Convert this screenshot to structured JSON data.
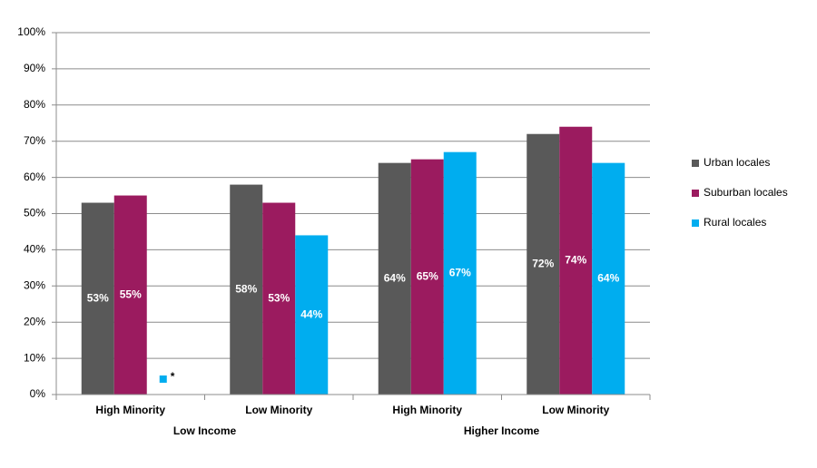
{
  "chart_data": {
    "type": "bar",
    "groups": [
      {
        "label": "Low Income",
        "span": [
          0,
          1
        ]
      },
      {
        "label": "Higher Income",
        "span": [
          2,
          3
        ]
      }
    ],
    "categories": [
      "High Minority",
      "Low Minority",
      "High Minority",
      "Low Minority"
    ],
    "series": [
      {
        "name": "Urban locales",
        "color": "#595959",
        "values": [
          53,
          58,
          64,
          72
        ],
        "value_labels": [
          "53%",
          "58%",
          "64%",
          "72%"
        ]
      },
      {
        "name": "Suburban locales",
        "color": "#9b1b5f",
        "values": [
          55,
          53,
          65,
          74
        ],
        "value_labels": [
          "55%",
          "53%",
          "65%",
          "74%"
        ]
      },
      {
        "name": "Rural locales",
        "color": "#00adef",
        "values": [
          null,
          44,
          67,
          64
        ],
        "value_labels": [
          null,
          "44%",
          "67%",
          "64%"
        ]
      }
    ],
    "annotation": "*",
    "ylim": [
      0,
      100
    ],
    "yticks": [
      {
        "value": 0,
        "label": "0%"
      },
      {
        "value": 10,
        "label": "10%"
      },
      {
        "value": 20,
        "label": "20%"
      },
      {
        "value": 30,
        "label": "30%"
      },
      {
        "value": 40,
        "label": "40%"
      },
      {
        "value": 50,
        "label": "50%"
      },
      {
        "value": 60,
        "label": "60%"
      },
      {
        "value": 70,
        "label": "70%"
      },
      {
        "value": 80,
        "label": "80%"
      },
      {
        "value": 90,
        "label": "90%"
      },
      {
        "value": 100,
        "label": "100%"
      }
    ],
    "grid": true,
    "legend": "right"
  }
}
